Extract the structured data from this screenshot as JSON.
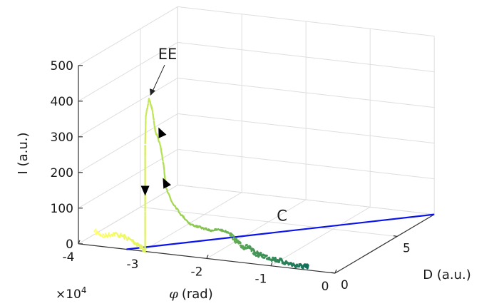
{
  "chart_data": {
    "type": "line",
    "subtype": "3d-line",
    "xlabel": "φ (rad)",
    "xlabel_symbol": "φ",
    "xlabel_unit": "(rad)",
    "ylabel": "D (a.u.)",
    "zlabel": "I (a.u.)",
    "x_exponent_label": "×10",
    "x_exponent_power": "4",
    "xlim": [
      -40000,
      0
    ],
    "ylim": [
      0,
      8
    ],
    "zlim": [
      0,
      500
    ],
    "x_ticks": [
      -40000,
      -30000,
      -20000,
      -10000,
      0
    ],
    "x_tick_labels": [
      "-4",
      "-3",
      "-2",
      "-1",
      "0"
    ],
    "y_ticks": [
      0,
      5
    ],
    "y_tick_labels": [
      "0",
      "5"
    ],
    "z_ticks": [
      0,
      100,
      200,
      300,
      400,
      500
    ],
    "z_tick_labels": [
      "0",
      "100",
      "200",
      "300",
      "400",
      "500"
    ],
    "grid": true,
    "colors": {
      "trajectory_start": "#ffff66",
      "trajectory_mid": "#a8dc50",
      "trajectory_end": "#0f6e5a",
      "C_line": "#0a14e6",
      "arrow": "#000000"
    },
    "series": [
      {
        "name": "C",
        "points": [
          [
            0,
            8,
            0
          ],
          [
            -32500,
            0,
            0
          ]
        ]
      },
      {
        "name": "trajectory",
        "points": [
          [
            -37500,
            0,
            40
          ],
          [
            -36000,
            0,
            30
          ],
          [
            -34500,
            0,
            40
          ],
          [
            -33000,
            0,
            35
          ],
          [
            -31500,
            0,
            25
          ],
          [
            -30500,
            0,
            15
          ],
          [
            -29600,
            0,
            0
          ],
          [
            -29600,
            0,
            100
          ],
          [
            -29600,
            0,
            200
          ],
          [
            -29600,
            0,
            300
          ],
          [
            -29500,
            0,
            380
          ],
          [
            -29000,
            0,
            430
          ],
          [
            -28500,
            0,
            400
          ],
          [
            -28000,
            0,
            340
          ],
          [
            -27200,
            0,
            300
          ],
          [
            -26700,
            0,
            245
          ],
          [
            -26400,
            0,
            190
          ],
          [
            -25500,
            0,
            150
          ],
          [
            -24000,
            0,
            115
          ],
          [
            -22500,
            0,
            90
          ],
          [
            -21000,
            0,
            85
          ],
          [
            -19500,
            0,
            80
          ],
          [
            -18000,
            0,
            85
          ],
          [
            -16500,
            0,
            80
          ],
          [
            -15500,
            0,
            60
          ],
          [
            -14500,
            0,
            45
          ],
          [
            -13500,
            0,
            45
          ],
          [
            -12500,
            0,
            30
          ],
          [
            -11000,
            0,
            25
          ],
          [
            -9500,
            0,
            20
          ],
          [
            -8000,
            0,
            15
          ],
          [
            -6500,
            0,
            10
          ],
          [
            -5000,
            0,
            8
          ],
          [
            -4200,
            0,
            10
          ]
        ]
      }
    ],
    "annotations": [
      {
        "text": "EE",
        "x": -29000,
        "y": 0,
        "z": 430
      },
      {
        "text": "C",
        "x": -16000,
        "y": 4,
        "z": 0
      }
    ]
  }
}
